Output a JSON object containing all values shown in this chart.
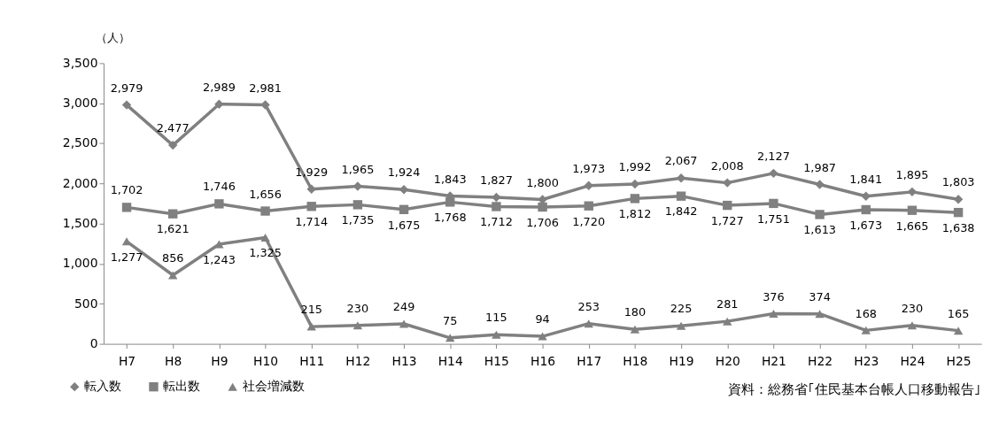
{
  "chart_data": {
    "type": "line",
    "ylabel": "（人）",
    "categories": [
      "H7",
      "H8",
      "H9",
      "H10",
      "H11",
      "H12",
      "H13",
      "H14",
      "H15",
      "H16",
      "H17",
      "H18",
      "H19",
      "H20",
      "H21",
      "H22",
      "H23",
      "H24",
      "H25"
    ],
    "series": [
      {
        "name": "転入数",
        "color": "#808080",
        "marker": "diamond",
        "values": [
          2979,
          2477,
          2989,
          2981,
          1929,
          1965,
          1924,
          1843,
          1827,
          1800,
          1973,
          1992,
          2067,
          2008,
          2127,
          1987,
          1841,
          1895,
          1803
        ],
        "value_labels": [
          "2,979",
          "2,477",
          "2,989",
          "2,981",
          "1,929",
          "1,965",
          "1,924",
          "1,843",
          "1,827",
          "1,800",
          "1,973",
          "1,992",
          "2,067",
          "2,008",
          "2,127",
          "1,987",
          "1,841",
          "1,895",
          "1,803"
        ]
      },
      {
        "name": "転出数",
        "color": "#808080",
        "marker": "square",
        "values": [
          1702,
          1621,
          1746,
          1656,
          1714,
          1735,
          1675,
          1768,
          1712,
          1706,
          1720,
          1812,
          1842,
          1727,
          1751,
          1613,
          1673,
          1665,
          1638
        ],
        "value_labels": [
          "1,702",
          "1,621",
          "1,746",
          "1,656",
          "1,714",
          "1,735",
          "1,675",
          "1,768",
          "1,712",
          "1,706",
          "1,720",
          "1,812",
          "1,842",
          "1,727",
          "1,751",
          "1,613",
          "1,673",
          "1,665",
          "1,638"
        ]
      },
      {
        "name": "社会増減数",
        "color": "#808080",
        "marker": "triangle",
        "values": [
          1277,
          856,
          1243,
          1325,
          215,
          230,
          249,
          75,
          115,
          94,
          253,
          180,
          225,
          281,
          376,
          374,
          168,
          230,
          165
        ],
        "value_labels": [
          "1,277",
          "856",
          "1,243",
          "1,325",
          "215",
          "230",
          "249",
          "75",
          "115",
          "94",
          "253",
          "180",
          "225",
          "281",
          "376",
          "374",
          "168",
          "230",
          "165"
        ]
      }
    ],
    "ylim": [
      0,
      3500
    ],
    "yticks": [
      0,
      500,
      {
        "value": 1000,
        "label": "1,000"
      },
      {
        "value": 1500,
        "label": "1,500"
      },
      {
        "value": 2000,
        "label": "2,000"
      },
      {
        "value": 2500,
        "label": "2,500"
      },
      {
        "value": 3000,
        "label": "3,000"
      },
      {
        "value": 3500,
        "label": "3,500"
      }
    ],
    "grid": false,
    "legend": "bottom left",
    "line_style": "solid",
    "annotations": [
      "資料：総務省｢住民基本台帳人口移動報告｣"
    ]
  }
}
